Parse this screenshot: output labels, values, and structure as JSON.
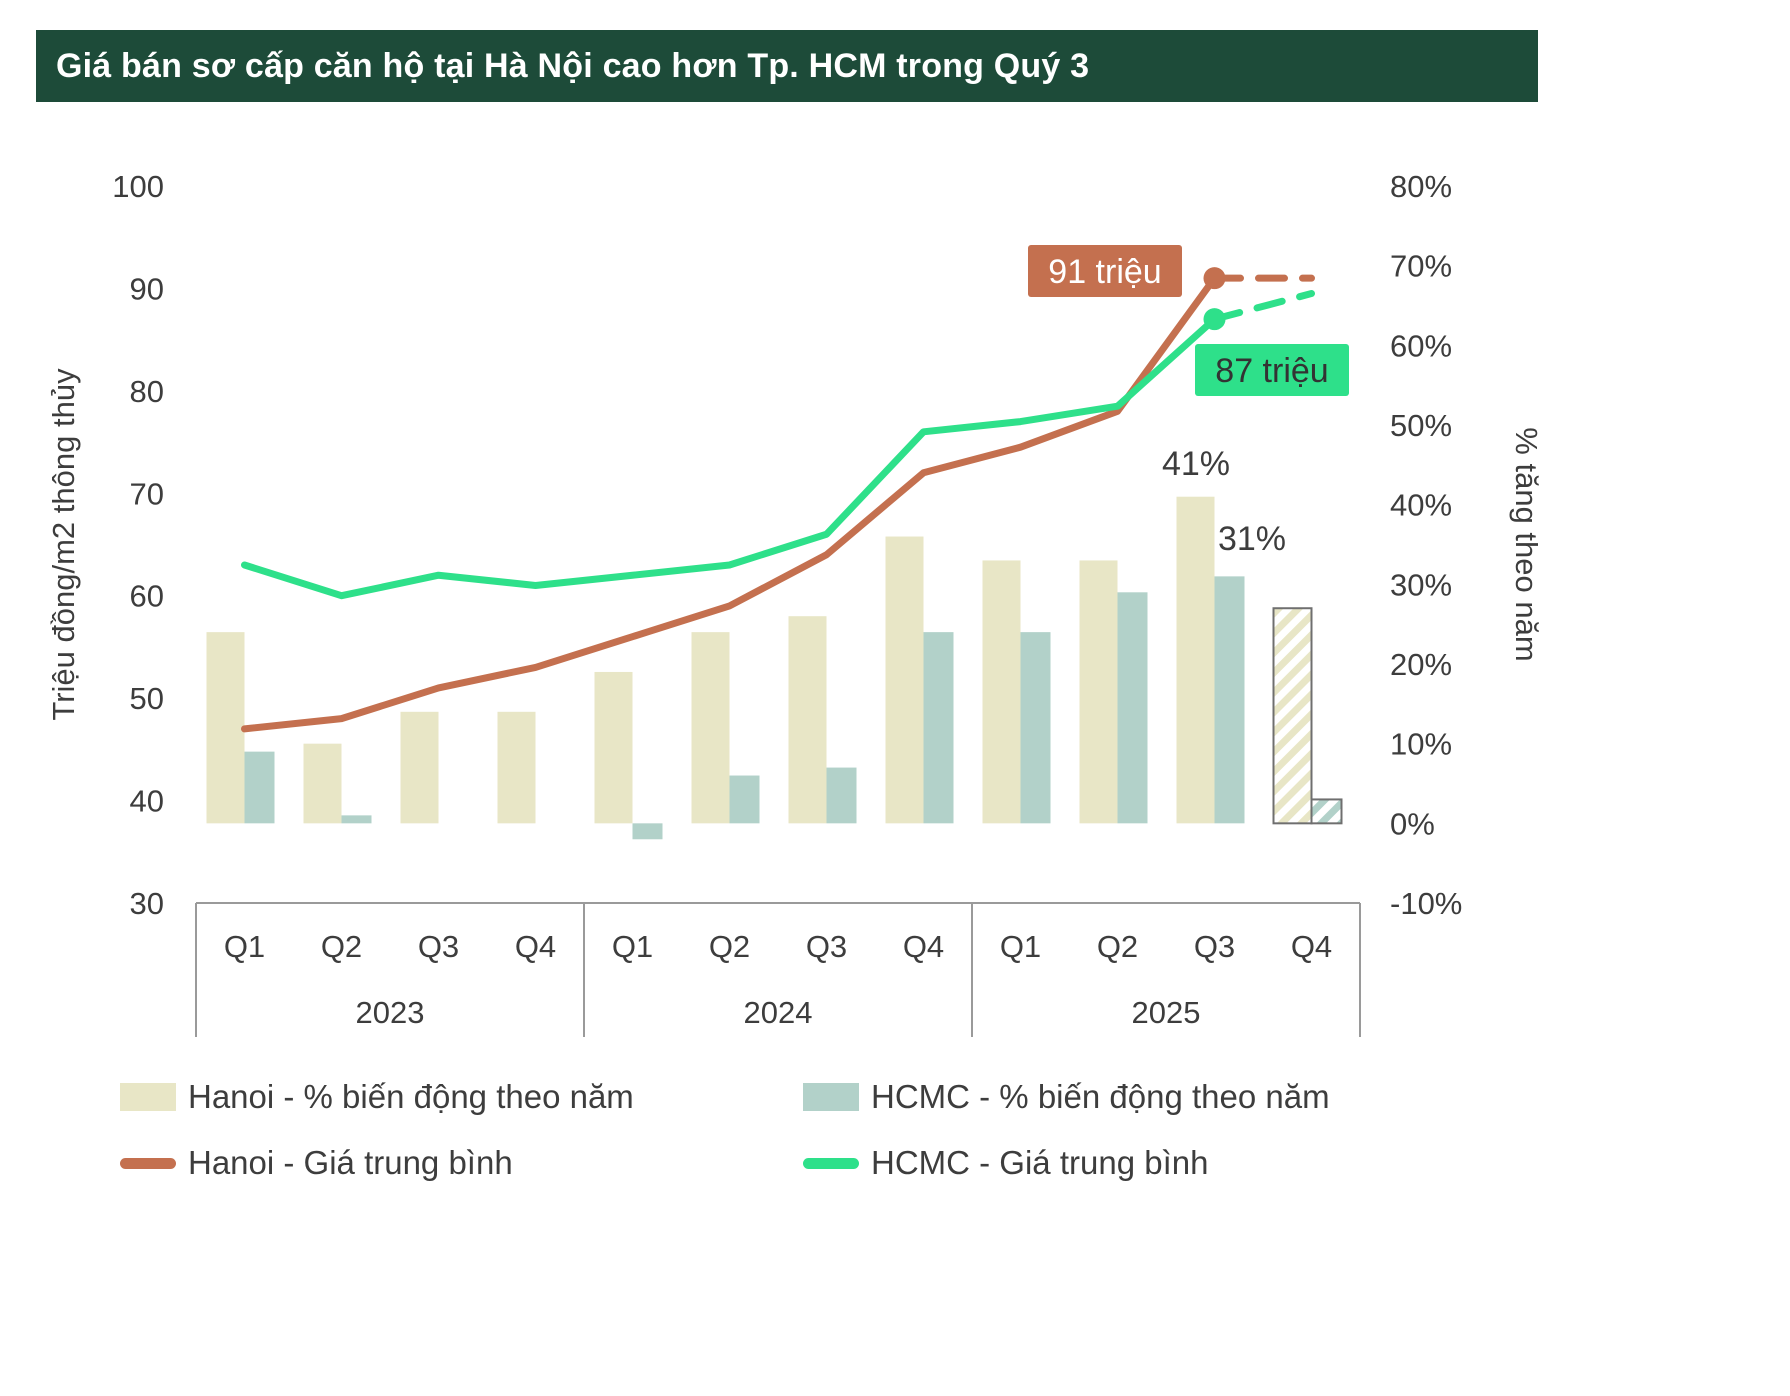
{
  "title": "Giá bán sơ cấp căn hộ tại Hà Nội cao hơn Tp. HCM trong Quý 3",
  "colors": {
    "banner_bg": "#1d4b39",
    "banner_text": "#ffffff",
    "hanoi_bar": "#e8e6c6",
    "hcmc_bar": "#b2d1c9",
    "hanoi_line": "#c4704f",
    "hcmc_line": "#2ee08a",
    "axis_text": "#3d3d3d",
    "frame": "#9a9a9a"
  },
  "chart_data": {
    "type": "combo",
    "categories": [
      "Q1",
      "Q2",
      "Q3",
      "Q4",
      "Q1",
      "Q2",
      "Q3",
      "Q4",
      "Q1",
      "Q2",
      "Q3",
      "Q4"
    ],
    "year_groups": [
      {
        "label": "2023",
        "span": 4
      },
      {
        "label": "2024",
        "span": 4
      },
      {
        "label": "2025",
        "span": 4
      }
    ],
    "left_axis": {
      "label": "Triệu đồng/m2 thông thủy",
      "min": 30,
      "max": 100,
      "step": 10,
      "suffix": ""
    },
    "right_axis": {
      "label": "% tăng theo năm",
      "min": -10,
      "max": 80,
      "step": 10,
      "suffix": "%"
    },
    "series": [
      {
        "name": "Hanoi - % biến động theo năm",
        "type": "bar",
        "axis": "right",
        "color_key": "hanoi_bar",
        "values": [
          24,
          10,
          14,
          14,
          19,
          24,
          26,
          36,
          33,
          33,
          41,
          27
        ],
        "forecast_from": 11
      },
      {
        "name": "HCMC - % biến động theo năm",
        "type": "bar",
        "axis": "right",
        "color_key": "hcmc_bar",
        "values": [
          9,
          1,
          null,
          null,
          -2,
          6,
          7,
          24,
          24,
          29,
          31,
          3
        ],
        "forecast_from": 11
      },
      {
        "name": "Hanoi - Giá trung bình",
        "type": "line",
        "axis": "left",
        "color_key": "hanoi_line",
        "values": [
          47,
          48,
          51,
          53,
          56,
          59,
          64,
          72,
          74.5,
          78,
          91,
          91
        ],
        "forecast_from": 10,
        "marker_index": 10
      },
      {
        "name": "HCMC - Giá trung bình",
        "type": "line",
        "axis": "left",
        "color_key": "hcmc_line",
        "values": [
          63,
          60,
          62,
          61,
          62,
          63,
          66,
          76,
          77,
          78.5,
          87,
          89.5
        ],
        "forecast_from": 10,
        "marker_index": 10
      }
    ],
    "annotations": [
      {
        "id": "hanoi-price-callout",
        "type": "box",
        "text": "91 triệu",
        "bg": "#c4704f",
        "fg": "#ffffff",
        "x": 1105,
        "y": 151
      },
      {
        "id": "hcmc-price-callout",
        "type": "box",
        "text": "87 triệu",
        "bg": "#2ee08a",
        "fg": "#333333",
        "x": 1272,
        "y": 250
      },
      {
        "id": "hanoi-growth-label",
        "type": "text",
        "text": "41%",
        "fg": "#3d3d3d",
        "x": 1196,
        "y": 355
      },
      {
        "id": "hcmc-growth-label",
        "type": "text",
        "text": "31%",
        "fg": "#3d3d3d",
        "x": 1252,
        "y": 430
      }
    ]
  },
  "legend": {
    "hanoi_bar": "Hanoi - % biến động theo năm",
    "hcmc_bar": "HCMC - % biến động theo năm",
    "hanoi_line": "Hanoi - Giá trung bình",
    "hcmc_line": "HCMC - Giá trung bình"
  }
}
